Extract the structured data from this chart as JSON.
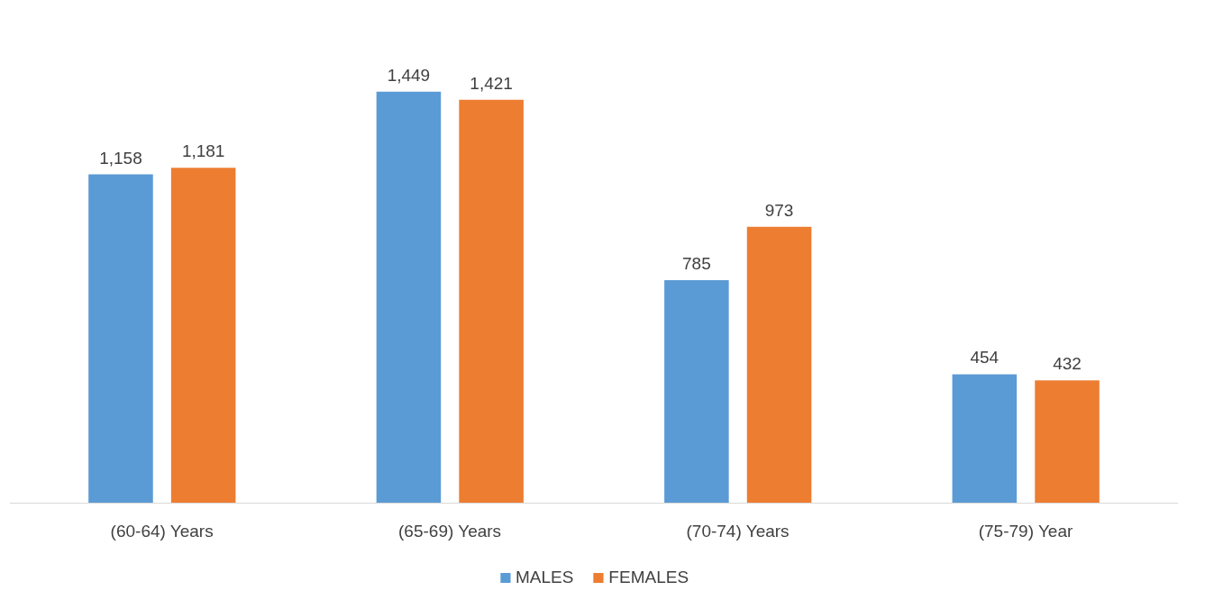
{
  "chart_data": {
    "type": "bar",
    "categories": [
      "(60-64) Years",
      "(65-69) Years",
      "(70-74) Years",
      "(75-79) Year"
    ],
    "series": [
      {
        "name": "MALES",
        "color": "#5b9bd5",
        "values": [
          1158,
          1449,
          785,
          454
        ],
        "value_labels": [
          "1,158",
          "1,449",
          "785",
          "454"
        ]
      },
      {
        "name": "FEMALES",
        "color": "#ed7d31",
        "values": [
          1181,
          1421,
          973,
          432
        ],
        "value_labels": [
          "1,181",
          "1,421",
          "973",
          "432"
        ]
      }
    ],
    "data_labels": true,
    "legend": "bottom",
    "grid": false
  }
}
